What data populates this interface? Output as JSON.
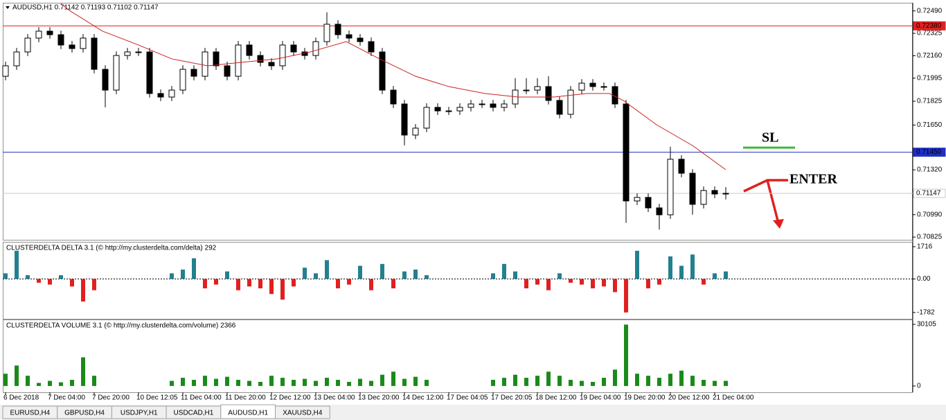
{
  "chart_data": {
    "type": "candlestick",
    "title": "AUDUSD,H1  0.71142 0.71193 0.71102 0.71147",
    "xlim": [
      -1,
      327
    ],
    "ylim": [
      0.70805,
      0.7255
    ],
    "yticks": [
      {
        "value": 0.7249,
        "label": "0.72490"
      },
      0.72325,
      {
        "value": 0.7216,
        "label": "0.72160"
      },
      0.71995,
      0.71825,
      {
        "value": 0.7165,
        "label": "0.71650"
      },
      {
        "value": 0.7132,
        "label": "0.71320"
      },
      {
        "value": 0.7099,
        "label": "0.70990"
      },
      0.70825
    ],
    "xticks": [
      {
        "value": 0,
        "label": "6 Dec 2018"
      },
      {
        "value": 16,
        "label": "7 Dec 04:00"
      },
      {
        "value": 32,
        "label": "7 Dec 20:00"
      },
      {
        "value": 48,
        "label": "10 Dec 12:05"
      },
      {
        "value": 64,
        "label": "11 Dec 04:00"
      },
      {
        "value": 80,
        "label": "11 Dec 20:00"
      },
      {
        "value": 96,
        "label": "12 Dec 12:00"
      },
      {
        "value": 112,
        "label": "13 Dec 04:00"
      },
      {
        "value": 128,
        "label": "13 Dec 20:00"
      },
      {
        "value": 144,
        "label": "14 Dec 12:00"
      },
      {
        "value": 160,
        "label": "17 Dec 04:05"
      },
      {
        "value": 176,
        "label": "17 Dec 20:05"
      },
      {
        "value": 192,
        "label": "18 Dec 12:00"
      },
      {
        "value": 208,
        "label": "19 Dec 04:00"
      },
      {
        "value": 224,
        "label": "19 Dec 20:00"
      },
      {
        "value": 240,
        "label": "20 Dec 12:00"
      },
      {
        "value": 256,
        "label": "21 Dec 04:00"
      }
    ],
    "x": [
      0,
      4,
      8,
      12,
      16,
      20,
      24,
      28,
      32,
      36,
      40,
      44,
      48,
      52,
      56,
      60,
      64,
      68,
      72,
      76,
      80,
      84,
      88,
      92,
      96,
      100,
      104,
      108,
      112,
      116,
      120,
      124,
      128,
      132,
      136,
      140,
      144,
      148,
      152,
      156,
      160,
      164,
      168,
      172,
      176,
      180,
      184,
      188,
      192,
      196,
      200,
      204,
      208,
      212,
      216,
      220,
      224,
      228,
      232,
      236,
      240,
      244,
      248,
      252,
      256,
      260
    ],
    "open": [
      0.72009,
      0.72086,
      0.72188,
      0.7229,
      0.72341,
      0.72315,
      0.72239,
      0.72213,
      0.7229,
      0.7206,
      0.71907,
      0.72162,
      0.72188,
      0.72188,
      0.71882,
      0.71856,
      0.71907,
      0.7206,
      0.72009,
      0.72188,
      0.72086,
      0.72009,
      0.72239,
      0.72162,
      0.72111,
      0.72086,
      0.72239,
      0.72188,
      0.72162,
      0.72264,
      0.72392,
      0.72315,
      0.7229,
      0.72264,
      0.72188,
      0.71907,
      0.71805,
      0.71576,
      0.71627,
      0.7178,
      0.71754,
      0.71754,
      0.7178,
      0.71805,
      0.71805,
      0.7178,
      0.71805,
      0.71907,
      0.71907,
      0.71933,
      0.71831,
      0.71729,
      0.71907,
      0.71958,
      0.71933,
      0.71933,
      0.71805,
      0.71091,
      0.71117,
      0.7104,
      0.70989,
      0.71398,
      0.71295,
      0.71066,
      0.71168,
      0.71142
    ],
    "high": [
      0.72116,
      0.72218,
      0.7232,
      0.72371,
      0.72371,
      0.72345,
      0.72269,
      0.7232,
      0.7232,
      0.7209,
      0.72192,
      0.72218,
      0.72218,
      0.72218,
      0.71912,
      0.71937,
      0.7209,
      0.7209,
      0.72218,
      0.72218,
      0.72116,
      0.72269,
      0.72269,
      0.72192,
      0.72141,
      0.72269,
      0.72269,
      0.72218,
      0.72294,
      0.7248,
      0.72422,
      0.72345,
      0.7232,
      0.72294,
      0.72218,
      0.71937,
      0.71835,
      0.71657,
      0.7181,
      0.7181,
      0.71784,
      0.7181,
      0.71835,
      0.71835,
      0.71835,
      0.71835,
      0.71995,
      0.71995,
      0.71995,
      0.72009,
      0.71861,
      0.71937,
      0.71988,
      0.71988,
      0.71963,
      0.71963,
      0.71835,
      0.71147,
      0.71147,
      0.7107,
      0.7149,
      0.71428,
      0.71325,
      0.71198,
      0.71198,
      0.71193
    ],
    "low": [
      0.71979,
      0.72056,
      0.72158,
      0.7226,
      0.72285,
      0.72209,
      0.72183,
      0.72183,
      0.7203,
      0.7178,
      0.71877,
      0.72132,
      0.72158,
      0.71852,
      0.71826,
      0.71826,
      0.71877,
      0.71979,
      0.71979,
      0.72056,
      0.71979,
      0.71979,
      0.72132,
      0.72081,
      0.72056,
      0.72056,
      0.72158,
      0.72132,
      0.72132,
      0.72234,
      0.72285,
      0.7226,
      0.72234,
      0.72158,
      0.71877,
      0.71775,
      0.715,
      0.71546,
      0.71597,
      0.71724,
      0.71724,
      0.71724,
      0.7175,
      0.71775,
      0.7175,
      0.7175,
      0.71775,
      0.71877,
      0.71877,
      0.71801,
      0.71699,
      0.71699,
      0.71877,
      0.71903,
      0.71903,
      0.71775,
      0.7093,
      0.71061,
      0.7101,
      0.7088,
      0.70959,
      0.71265,
      0.7099,
      0.71036,
      0.71112,
      0.71102
    ],
    "close": [
      0.72086,
      0.72188,
      0.7229,
      0.72341,
      0.72315,
      0.72239,
      0.72213,
      0.7229,
      0.7206,
      0.71907,
      0.72162,
      0.72188,
      0.72188,
      0.71882,
      0.71856,
      0.71907,
      0.7206,
      0.72009,
      0.72188,
      0.72086,
      0.72009,
      0.72239,
      0.72162,
      0.72111,
      0.72086,
      0.72239,
      0.72188,
      0.72162,
      0.72264,
      0.72392,
      0.72315,
      0.7229,
      0.72264,
      0.72188,
      0.71907,
      0.71805,
      0.71576,
      0.71627,
      0.7178,
      0.71754,
      0.71754,
      0.7178,
      0.71805,
      0.71805,
      0.7178,
      0.71805,
      0.71907,
      0.71907,
      0.71933,
      0.71831,
      0.71729,
      0.71907,
      0.71958,
      0.71933,
      0.71933,
      0.71805,
      0.71091,
      0.71117,
      0.7104,
      0.70989,
      0.71398,
      0.71295,
      0.71066,
      0.71168,
      0.71142,
      0.71147
    ],
    "up_color": "#ffffff",
    "down_color": "#000000",
    "ma": {
      "color": "#cc2020",
      "x": [
        20,
        23,
        35,
        48,
        60,
        73,
        85,
        98,
        110,
        123,
        135,
        148,
        160,
        173,
        185,
        198,
        210,
        218,
        223,
        235,
        248,
        260
      ],
      "values": [
        0.72545,
        0.72494,
        0.72341,
        0.72239,
        0.72137,
        0.72086,
        0.72111,
        0.72137,
        0.72188,
        0.72264,
        0.72137,
        0.72009,
        0.71933,
        0.71882,
        0.71856,
        0.71856,
        0.71882,
        0.71882,
        0.71831,
        0.71652,
        0.71499,
        0.71321
      ]
    },
    "hlines": [
      {
        "value": 0.7238,
        "label": "0.72380",
        "color": "#e02020",
        "label_fill": "#e02020",
        "label_color": "#ffffff"
      },
      {
        "value": 0.7145,
        "label": "0.71450",
        "color": "#2030c0",
        "label_fill": "#2030c0",
        "label_color": "#ffffff"
      },
      {
        "value": 0.71147,
        "label": "0.71147",
        "color": "#c8c8c8",
        "label_fill": "#ffffff",
        "label_color": "#000000"
      }
    ],
    "annotations": [
      {
        "text": "SL",
        "color": "#3cb83c"
      },
      {
        "text": "ENTER",
        "color": "#e02020"
      }
    ],
    "panels": [
      {
        "type": "bar",
        "title": "CLUSTERDELTA DELTA 3.1 (© http://my.clusterdelta.com/delta) 292",
        "ylim": [
          -2120,
          1935
        ],
        "yticks": [
          1716,
          {
            "value": 0,
            "label": "0.00"
          },
          -1782
        ],
        "zero_line": true,
        "positive_color": "#23808f",
        "negative_color": "#e02020",
        "values": [
          300,
          1500,
          200,
          -200,
          -300,
          200,
          -400,
          -1200,
          -600,
          null,
          null,
          null,
          null,
          null,
          null,
          300,
          500,
          1100,
          -500,
          -300,
          400,
          -600,
          -400,
          -500,
          -800,
          -1100,
          -400,
          600,
          300,
          1000,
          -500,
          -300,
          700,
          -600,
          800,
          -500,
          400,
          500,
          200,
          null,
          null,
          null,
          null,
          null,
          300,
          800,
          400,
          -500,
          -300,
          -600,
          300,
          -200,
          -300,
          -500,
          -400,
          -700,
          -1782,
          1500,
          -500,
          -300,
          1200,
          700,
          1300,
          -300,
          300,
          400
        ]
      },
      {
        "type": "bar",
        "title": "CLUSTERDELTA VOLUME 3.1 (© http://my.clusterdelta.com/volume) 2366",
        "ylim": [
          -3080,
          32157
        ],
        "yticks": [
          30105,
          0
        ],
        "color": "#1a8a1a",
        "values": [
          6000,
          10000,
          5000,
          1500,
          2500,
          1800,
          3000,
          14000,
          5000,
          null,
          null,
          null,
          null,
          null,
          null,
          2500,
          4000,
          3000,
          5000,
          3500,
          4500,
          3000,
          2500,
          2000,
          5000,
          4000,
          3000,
          3500,
          2500,
          4000,
          3000,
          2000,
          3500,
          2500,
          5500,
          7000,
          3500,
          4500,
          3000,
          null,
          null,
          null,
          null,
          null,
          3000,
          4000,
          5500,
          4000,
          5000,
          7000,
          5000,
          3000,
          2500,
          2000,
          4000,
          8000,
          30000,
          6000,
          5000,
          4000,
          6000,
          7500,
          5000,
          3000,
          2500,
          2500
        ]
      }
    ]
  },
  "tabs": [
    "EURUSD,H4",
    "GBPUSD,H4",
    "USDJPY,H1",
    "USDCAD,H1",
    "AUDUSD,H1",
    "XAUUSD,H4"
  ],
  "active_tab": 4
}
